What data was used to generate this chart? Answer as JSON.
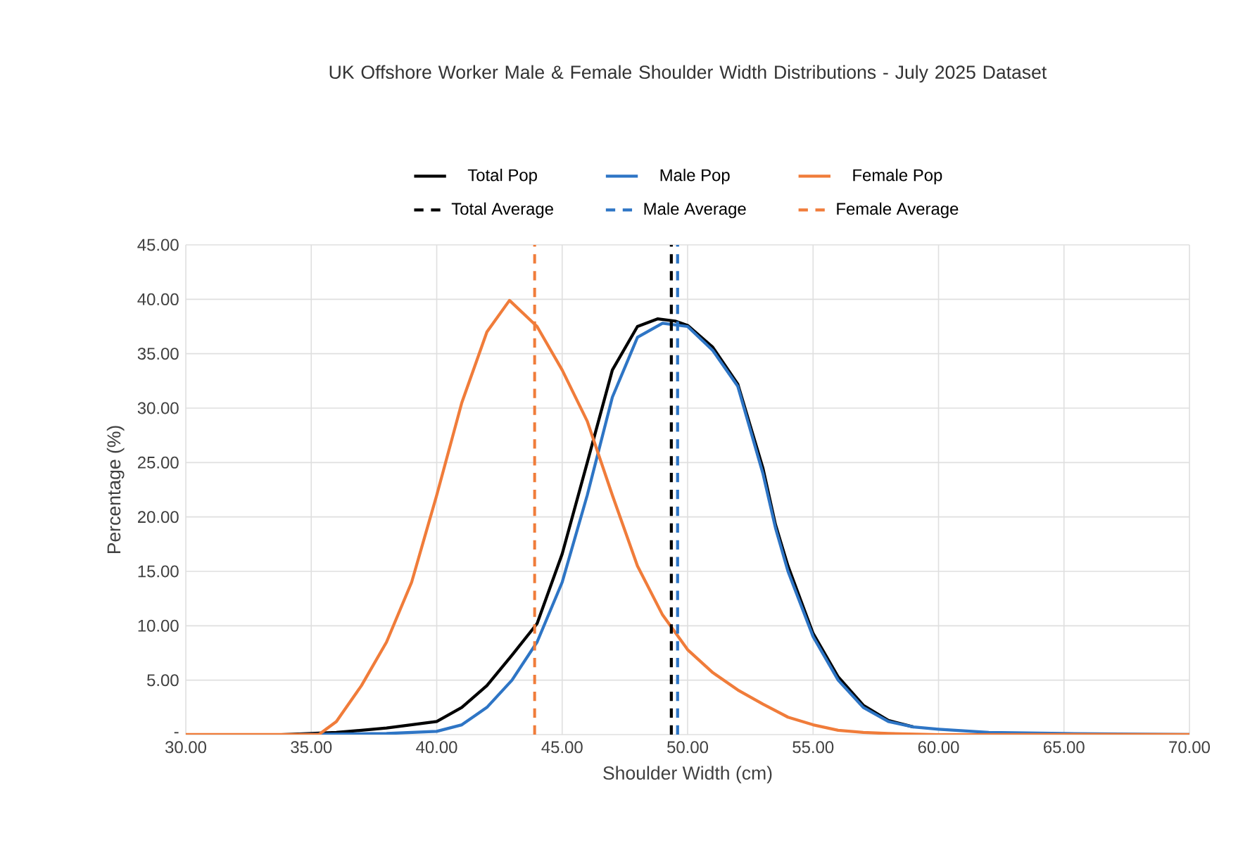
{
  "chart_data": {
    "type": "line",
    "title": "UK Offshore Worker Male & Female Shoulder Width Distributions - July 2025 Dataset",
    "xlabel": "Shoulder Width (cm)",
    "ylabel": "Percentage (%)",
    "xlim": [
      30,
      70
    ],
    "xticks": [
      {
        "value": 30,
        "label": "30.00"
      },
      {
        "value": 35,
        "label": "35.00"
      },
      {
        "value": 40,
        "label": "40.00"
      },
      {
        "value": 45,
        "label": "45.00"
      },
      {
        "value": 50,
        "label": "50.00"
      },
      {
        "value": 55,
        "label": "55.00"
      },
      {
        "value": 60,
        "label": "60.00"
      },
      {
        "value": 65,
        "label": "65.00"
      },
      {
        "value": 70,
        "label": "70.00"
      }
    ],
    "ylim": [
      0,
      45
    ],
    "yticks": [
      {
        "value": 0,
        "label": "-"
      },
      {
        "value": 5,
        "label": "5.00"
      },
      {
        "value": 10,
        "label": "10.00"
      },
      {
        "value": 15,
        "label": "15.00"
      },
      {
        "value": 20,
        "label": "20.00"
      },
      {
        "value": 25,
        "label": "25.00"
      },
      {
        "value": 30,
        "label": "30.00"
      },
      {
        "value": 35,
        "label": "35.00"
      },
      {
        "value": 40,
        "label": "40.00"
      },
      {
        "value": 45,
        "label": "45.00"
      }
    ],
    "grid": true,
    "legend": "top",
    "marker": "none",
    "series": [
      {
        "name": "Total Pop",
        "color": "#000000",
        "line_style": "solid",
        "x": [
          33.8,
          36,
          38,
          40,
          41,
          42,
          43,
          44,
          45,
          46,
          47,
          48,
          48.8,
          49.5,
          50,
          51,
          52,
          53,
          53.5,
          54,
          55,
          56,
          57,
          58,
          59
        ],
        "values": [
          0,
          0.2,
          0.6,
          1.2,
          2.5,
          4.5,
          7.3,
          10.2,
          16.6,
          25,
          33.5,
          37.5,
          38.2,
          38,
          37.6,
          35.6,
          32.2,
          24.5,
          19.3,
          15.5,
          9.3,
          5.3,
          2.7,
          1.3,
          0.7
        ]
      },
      {
        "name": "Male Pop",
        "color": "#2e75c5",
        "line_style": "solid",
        "x": [
          34.5,
          38,
          40,
          41,
          42,
          43,
          44,
          45,
          46,
          47,
          48,
          49,
          50,
          51,
          52,
          53,
          53.5,
          54,
          55,
          56,
          57,
          58,
          59,
          60,
          62,
          65,
          70
        ],
        "values": [
          0,
          0.1,
          0.3,
          0.9,
          2.5,
          5,
          8.5,
          14,
          22,
          31,
          36.5,
          37.8,
          37.5,
          35.3,
          32,
          24,
          19,
          15,
          9,
          5,
          2.5,
          1.2,
          0.7,
          0.5,
          0.2,
          0.1,
          0
        ]
      },
      {
        "name": "Female Pop",
        "color": "#f07c3a",
        "line_style": "solid",
        "x": [
          30,
          33,
          35.3,
          36,
          37,
          38,
          39,
          40,
          41,
          42,
          42.9,
          44,
          45,
          46,
          47,
          48,
          49,
          50,
          51,
          52,
          53,
          54,
          55,
          56,
          57,
          58,
          60,
          70
        ],
        "values": [
          0,
          0,
          0,
          1.2,
          4.5,
          8.5,
          14,
          22,
          30.5,
          37,
          39.9,
          37.5,
          33.5,
          28.8,
          22,
          15.5,
          11,
          7.8,
          5.7,
          4.1,
          2.8,
          1.6,
          0.9,
          0.4,
          0.2,
          0.1,
          0,
          0
        ]
      },
      {
        "name": "Total Average",
        "color": "#000000",
        "line_style": "dashed",
        "x": [
          49.35,
          49.35
        ],
        "values": [
          0,
          45
        ]
      },
      {
        "name": "Male Average",
        "color": "#2e75c5",
        "line_style": "dashed",
        "x": [
          49.6,
          49.6
        ],
        "values": [
          0,
          45
        ]
      },
      {
        "name": "Female Average",
        "color": "#f07c3a",
        "line_style": "dashed",
        "x": [
          43.9,
          43.9
        ],
        "values": [
          0,
          45
        ]
      }
    ]
  }
}
